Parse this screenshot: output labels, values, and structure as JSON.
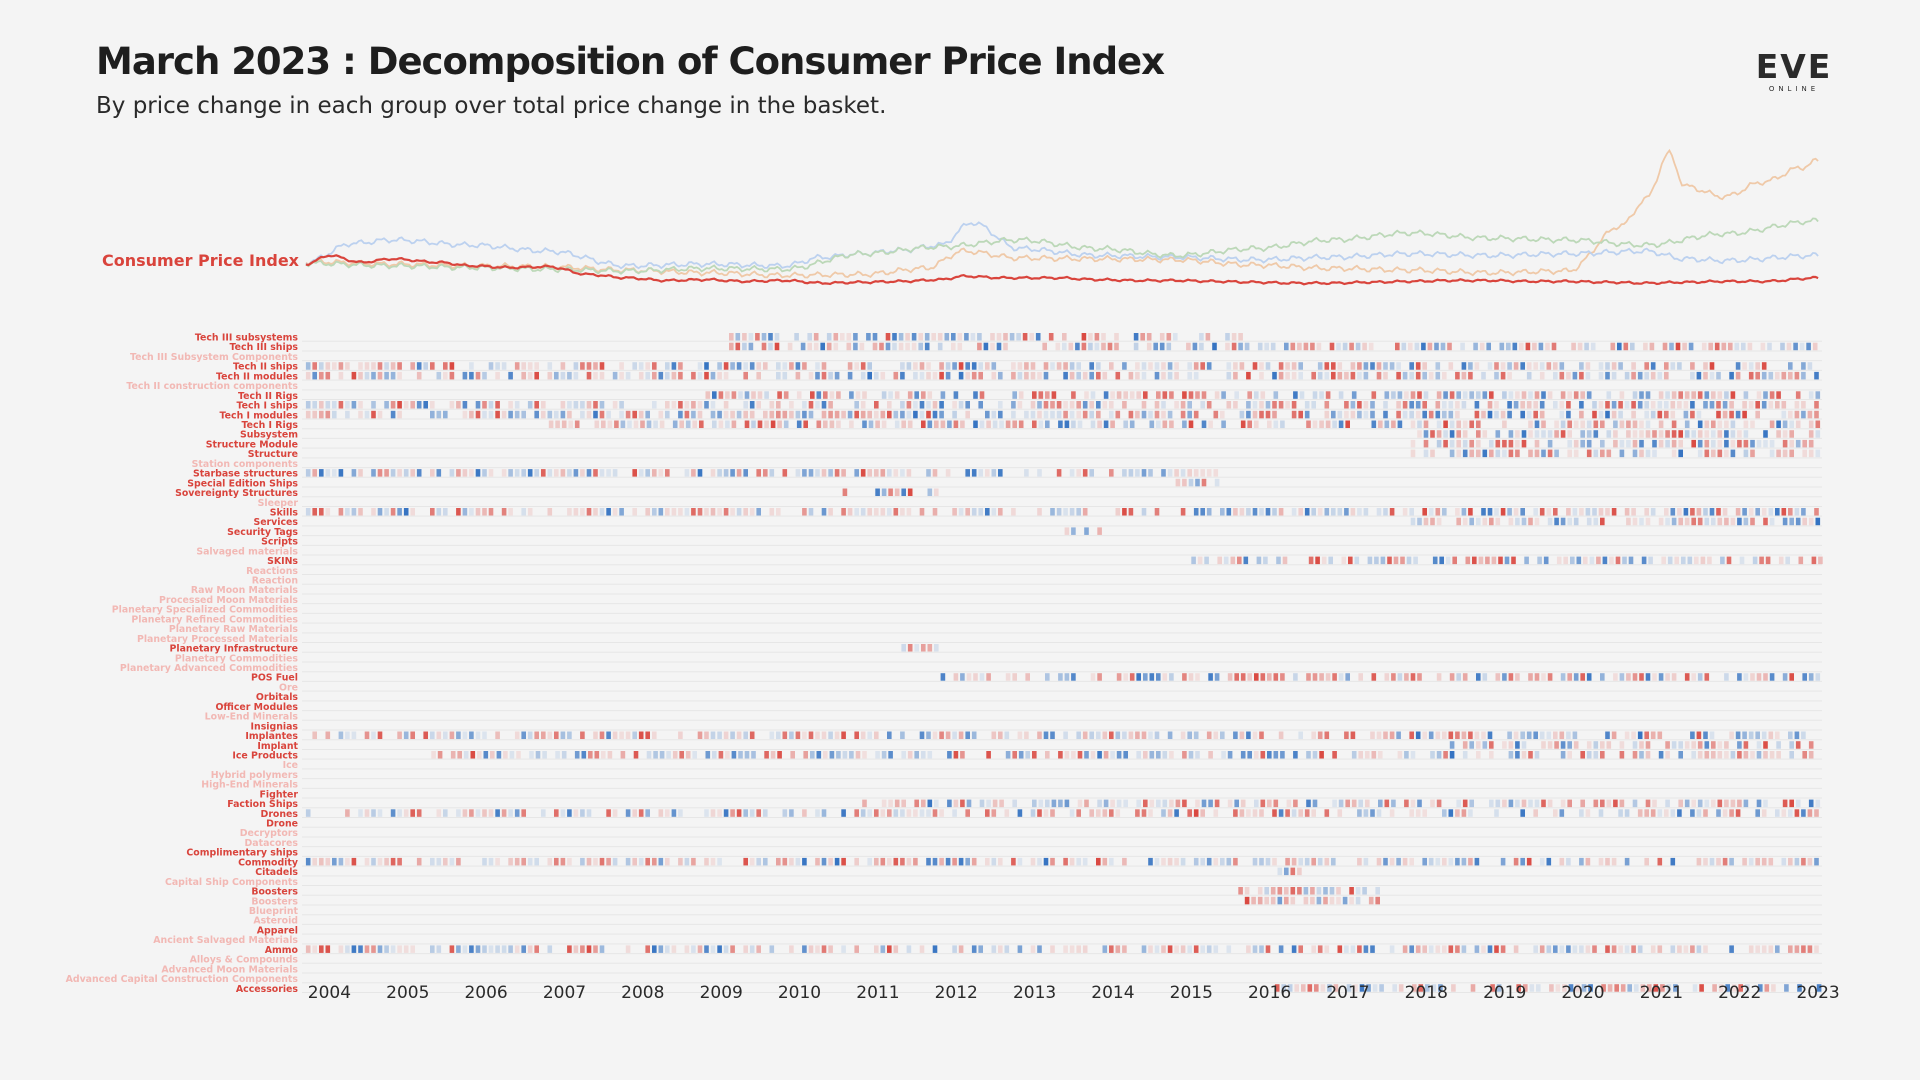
{
  "header": {
    "title": "March 2023 : Decomposition of Consumer Price Index",
    "subtitle": "By price change in each group over total price change in the basket."
  },
  "logo": {
    "text": "EVE",
    "subtext": "ONLINE"
  },
  "colors": {
    "background": "#f4f4f4",
    "cpi_line": "#d9443c",
    "label_active": "#d9443c",
    "label_faded": "#f2b8b4",
    "increase": "#d9443c",
    "decrease": "#2f6fc0",
    "context_line_orange": "#efc9a8",
    "context_line_blue": "#bcd1ef",
    "context_line_green": "#bcd8b8"
  },
  "chart_data": {
    "type": "heatmap",
    "title": "March 2023 : Decomposition of Consumer Price Index",
    "subtitle": "By price change in each group over total price change in the basket.",
    "x": [
      "2004",
      "2005",
      "2006",
      "2007",
      "2008",
      "2009",
      "2010",
      "2011",
      "2012",
      "2013",
      "2014",
      "2015",
      "2016",
      "2017",
      "2018",
      "2019",
      "2020",
      "2021",
      "2022",
      "2023"
    ],
    "cpi_label": "Consumer Price Index",
    "cpi_series": [
      {
        "date": "2003.9",
        "value": 100
      },
      {
        "date": "2004.2",
        "value": 110
      },
      {
        "date": "2004.6",
        "value": 102
      },
      {
        "date": "2005.0",
        "value": 106
      },
      {
        "date": "2005.6",
        "value": 102
      },
      {
        "date": "2006.0",
        "value": 98
      },
      {
        "date": "2006.5",
        "value": 96
      },
      {
        "date": "2007.0",
        "value": 97
      },
      {
        "date": "2007.5",
        "value": 88
      },
      {
        "date": "2008.0",
        "value": 84
      },
      {
        "date": "2008.5",
        "value": 81
      },
      {
        "date": "2009.0",
        "value": 82
      },
      {
        "date": "2009.5",
        "value": 80
      },
      {
        "date": "2010.0",
        "value": 81
      },
      {
        "date": "2010.5",
        "value": 78
      },
      {
        "date": "2011.0",
        "value": 79
      },
      {
        "date": "2011.5",
        "value": 80
      },
      {
        "date": "2012.0",
        "value": 82
      },
      {
        "date": "2012.3",
        "value": 86
      },
      {
        "date": "2012.8",
        "value": 84
      },
      {
        "date": "2013.5",
        "value": 84
      },
      {
        "date": "2014.0",
        "value": 82
      },
      {
        "date": "2014.5",
        "value": 81
      },
      {
        "date": "2015.0",
        "value": 81
      },
      {
        "date": "2015.5",
        "value": 80
      },
      {
        "date": "2016.0",
        "value": 79
      },
      {
        "date": "2016.5",
        "value": 78
      },
      {
        "date": "2017.0",
        "value": 78
      },
      {
        "date": "2017.5",
        "value": 79
      },
      {
        "date": "2018.0",
        "value": 80
      },
      {
        "date": "2018.5",
        "value": 81
      },
      {
        "date": "2019.0",
        "value": 81
      },
      {
        "date": "2019.5",
        "value": 80
      },
      {
        "date": "2020.0",
        "value": 80
      },
      {
        "date": "2020.5",
        "value": 79
      },
      {
        "date": "2021.0",
        "value": 78
      },
      {
        "date": "2021.5",
        "value": 79
      },
      {
        "date": "2022.0",
        "value": 80
      },
      {
        "date": "2022.5",
        "value": 80
      },
      {
        "date": "2023.2",
        "value": 84
      }
    ],
    "context_series": [
      {
        "color": "orange",
        "points": [
          {
            "date": "2003.9",
            "value": 103
          },
          {
            "date": "2005.0",
            "value": 100
          },
          {
            "date": "2006.0",
            "value": 98
          },
          {
            "date": "2007.0",
            "value": 97
          },
          {
            "date": "2008.0",
            "value": 93
          },
          {
            "date": "2009.0",
            "value": 90
          },
          {
            "date": "2010.0",
            "value": 87
          },
          {
            "date": "2011.0",
            "value": 88
          },
          {
            "date": "2011.8",
            "value": 95
          },
          {
            "date": "2012.3",
            "value": 115
          },
          {
            "date": "2013.0",
            "value": 107
          },
          {
            "date": "2014.0",
            "value": 106
          },
          {
            "date": "2015.0",
            "value": 105
          },
          {
            "date": "2016.0",
            "value": 99
          },
          {
            "date": "2017.0",
            "value": 95
          },
          {
            "date": "2018.0",
            "value": 93
          },
          {
            "date": "2019.0",
            "value": 90
          },
          {
            "date": "2020.0",
            "value": 92
          },
          {
            "date": "2020.7",
            "value": 145
          },
          {
            "date": "2021.0",
            "value": 175
          },
          {
            "date": "2021.3",
            "value": 228
          },
          {
            "date": "2021.5",
            "value": 190
          },
          {
            "date": "2022.0",
            "value": 178
          },
          {
            "date": "2022.5",
            "value": 195
          },
          {
            "date": "2023.0",
            "value": 212
          },
          {
            "date": "2023.2",
            "value": 220
          }
        ]
      },
      {
        "color": "blue",
        "points": [
          {
            "date": "2003.9",
            "value": 102
          },
          {
            "date": "2004.5",
            "value": 124
          },
          {
            "date": "2005.0",
            "value": 128
          },
          {
            "date": "2006.0",
            "value": 122
          },
          {
            "date": "2007.0",
            "value": 115
          },
          {
            "date": "2008.0",
            "value": 98
          },
          {
            "date": "2009.0",
            "value": 100
          },
          {
            "date": "2010.0",
            "value": 98
          },
          {
            "date": "2010.5",
            "value": 108
          },
          {
            "date": "2011.0",
            "value": 112
          },
          {
            "date": "2011.5",
            "value": 116
          },
          {
            "date": "2012.0",
            "value": 122
          },
          {
            "date": "2012.4",
            "value": 148
          },
          {
            "date": "2013.0",
            "value": 118
          },
          {
            "date": "2014.0",
            "value": 110
          },
          {
            "date": "2015.0",
            "value": 108
          },
          {
            "date": "2016.0",
            "value": 105
          },
          {
            "date": "2017.0",
            "value": 108
          },
          {
            "date": "2018.0",
            "value": 112
          },
          {
            "date": "2019.0",
            "value": 110
          },
          {
            "date": "2020.0",
            "value": 112
          },
          {
            "date": "2021.0",
            "value": 115
          },
          {
            "date": "2021.5",
            "value": 106
          },
          {
            "date": "2022.0",
            "value": 104
          },
          {
            "date": "2023.2",
            "value": 110
          }
        ]
      },
      {
        "color": "green",
        "points": [
          {
            "date": "2003.9",
            "value": 101
          },
          {
            "date": "2005.0",
            "value": 98
          },
          {
            "date": "2006.0",
            "value": 96
          },
          {
            "date": "2007.0",
            "value": 94
          },
          {
            "date": "2008.0",
            "value": 92
          },
          {
            "date": "2009.0",
            "value": 95
          },
          {
            "date": "2010.0",
            "value": 94
          },
          {
            "date": "2011.0",
            "value": 112
          },
          {
            "date": "2012.0",
            "value": 120
          },
          {
            "date": "2013.0",
            "value": 128
          },
          {
            "date": "2014.0",
            "value": 118
          },
          {
            "date": "2015.0",
            "value": 110
          },
          {
            "date": "2016.0",
            "value": 118
          },
          {
            "date": "2017.0",
            "value": 128
          },
          {
            "date": "2018.0",
            "value": 136
          },
          {
            "date": "2019.0",
            "value": 130
          },
          {
            "date": "2020.0",
            "value": 128
          },
          {
            "date": "2021.0",
            "value": 122
          },
          {
            "date": "2022.0",
            "value": 135
          },
          {
            "date": "2023.2",
            "value": 150
          }
        ]
      }
    ],
    "groups": [
      {
        "label": "Tech III subsystems",
        "active": true
      },
      {
        "label": "Tech III ships",
        "active": true
      },
      {
        "label": "Tech III Subsystem Components",
        "active": false
      },
      {
        "label": "Tech II ships",
        "active": true
      },
      {
        "label": "Tech II modules",
        "active": true
      },
      {
        "label": "Tech II construction components",
        "active": false
      },
      {
        "label": "Tech II Rigs",
        "active": true
      },
      {
        "label": "Tech I ships",
        "active": true
      },
      {
        "label": "Tech I modules",
        "active": true
      },
      {
        "label": "Tech I Rigs",
        "active": true
      },
      {
        "label": "Subsystem",
        "active": true
      },
      {
        "label": "Structure Module",
        "active": true
      },
      {
        "label": "Structure",
        "active": true
      },
      {
        "label": "Station components",
        "active": false
      },
      {
        "label": "Starbase structures",
        "active": true
      },
      {
        "label": "Special Edition Ships",
        "active": true
      },
      {
        "label": "Sovereignty Structures",
        "active": true
      },
      {
        "label": "Sleeper",
        "active": false
      },
      {
        "label": "Skills",
        "active": true
      },
      {
        "label": "Services",
        "active": true
      },
      {
        "label": "Security Tags",
        "active": true
      },
      {
        "label": "Scripts",
        "active": true
      },
      {
        "label": "Salvaged materials",
        "active": false
      },
      {
        "label": "SKINs",
        "active": true
      },
      {
        "label": "Reactions",
        "active": false
      },
      {
        "label": "Reaction",
        "active": false
      },
      {
        "label": "Raw Moon Materials",
        "active": false
      },
      {
        "label": "Processed Moon Materials",
        "active": false
      },
      {
        "label": "Planetary Specialized Commodities",
        "active": false
      },
      {
        "label": "Planetary Refined Commodities",
        "active": false
      },
      {
        "label": "Planetary Raw Materials",
        "active": false
      },
      {
        "label": "Planetary Processed Materials",
        "active": false
      },
      {
        "label": "Planetary Infrastructure",
        "active": true
      },
      {
        "label": "Planetary Commodities",
        "active": false
      },
      {
        "label": "Planetary Advanced Commodities",
        "active": false
      },
      {
        "label": "POS Fuel",
        "active": true
      },
      {
        "label": "Ore",
        "active": false
      },
      {
        "label": "Orbitals",
        "active": true
      },
      {
        "label": "Officer Modules",
        "active": true
      },
      {
        "label": "Low-End Minerals",
        "active": false
      },
      {
        "label": "Insignias",
        "active": true
      },
      {
        "label": "Implantes",
        "active": true
      },
      {
        "label": "Implant",
        "active": true
      },
      {
        "label": "Ice Products",
        "active": true
      },
      {
        "label": "Ice",
        "active": false
      },
      {
        "label": "Hybrid polymers",
        "active": false
      },
      {
        "label": "High-End Minerals",
        "active": false
      },
      {
        "label": "Fighter",
        "active": true
      },
      {
        "label": "Faction Ships",
        "active": true
      },
      {
        "label": "Drones",
        "active": true
      },
      {
        "label": "Drone",
        "active": true
      },
      {
        "label": "Decryptors",
        "active": false
      },
      {
        "label": "Datacores",
        "active": false
      },
      {
        "label": "Complimentary ships",
        "active": true
      },
      {
        "label": "Commodity",
        "active": true
      },
      {
        "label": "Citadels",
        "active": true
      },
      {
        "label": "Capital Ship Components",
        "active": false
      },
      {
        "label": "Boosters",
        "active": true
      },
      {
        "label": "Boosters",
        "active": false
      },
      {
        "label": "Blueprint",
        "active": false
      },
      {
        "label": "Asteroid",
        "active": false
      },
      {
        "label": "Apparel",
        "active": true
      },
      {
        "label": "Ancient Salvaged Materials",
        "active": false
      },
      {
        "label": "Ammo",
        "active": true
      },
      {
        "label": "Alloys & Compounds",
        "active": false
      },
      {
        "label": "Advanced Moon Materials",
        "active": false
      },
      {
        "label": "Advanced Capital Construction Components",
        "active": false
      },
      {
        "label": "Accessories",
        "active": true
      }
    ],
    "activity_ranges": {
      "Tech III subsystems": [
        "2009.3",
        "2015.8"
      ],
      "Tech III ships": [
        "2009.3",
        "2023.2"
      ],
      "Tech II ships": [
        "2003.9",
        "2023.2"
      ],
      "Tech II modules": [
        "2003.9",
        "2023.2"
      ],
      "Tech II Rigs": [
        "2009.0",
        "2023.2"
      ],
      "Tech I ships": [
        "2003.9",
        "2023.2"
      ],
      "Tech I modules": [
        "2003.9",
        "2023.2"
      ],
      "Tech I Rigs": [
        "2007.0",
        "2023.2"
      ],
      "Subsystem": [
        "2018.0",
        "2023.2"
      ],
      "Structure Module": [
        "2018.0",
        "2023.2"
      ],
      "Structure": [
        "2018.0",
        "2023.2"
      ],
      "Starbase structures": [
        "2003.9",
        "2015.5"
      ],
      "Special Edition Ships": [
        "2015.0",
        "2015.5"
      ],
      "Sovereignty Structures": [
        "2010.5",
        "2012.0"
      ],
      "Skills": [
        "2003.9",
        "2023.2"
      ],
      "Services": [
        "2018.0",
        "2023.2"
      ],
      "Security Tags": [
        "2013.5",
        "2014.0"
      ],
      "SKINs": [
        "2015.2",
        "2023.2"
      ],
      "Planetary Infrastructure": [
        "2011.5",
        "2012.0"
      ],
      "POS Fuel": [
        "2012.0",
        "2023.2"
      ],
      "Implantes": [
        "2003.9",
        "2023.2"
      ],
      "Implant": [
        "2018.5",
        "2023.2"
      ],
      "Ice Products": [
        "2005.5",
        "2023.2"
      ],
      "Faction Ships": [
        "2011.0",
        "2023.2"
      ],
      "Drones": [
        "2003.9",
        "2023.2"
      ],
      "Commodity": [
        "2003.9",
        "2023.2"
      ],
      "Citadels": [
        "2016.3",
        "2016.6"
      ],
      "Boosters": [
        "2015.8",
        "2017.6"
      ],
      "Ammo": [
        "2003.9",
        "2023.2"
      ],
      "Accessories": [
        "2016.1",
        "2023.2"
      ]
    },
    "xlabel": "",
    "ylabel": "",
    "grid": true
  }
}
